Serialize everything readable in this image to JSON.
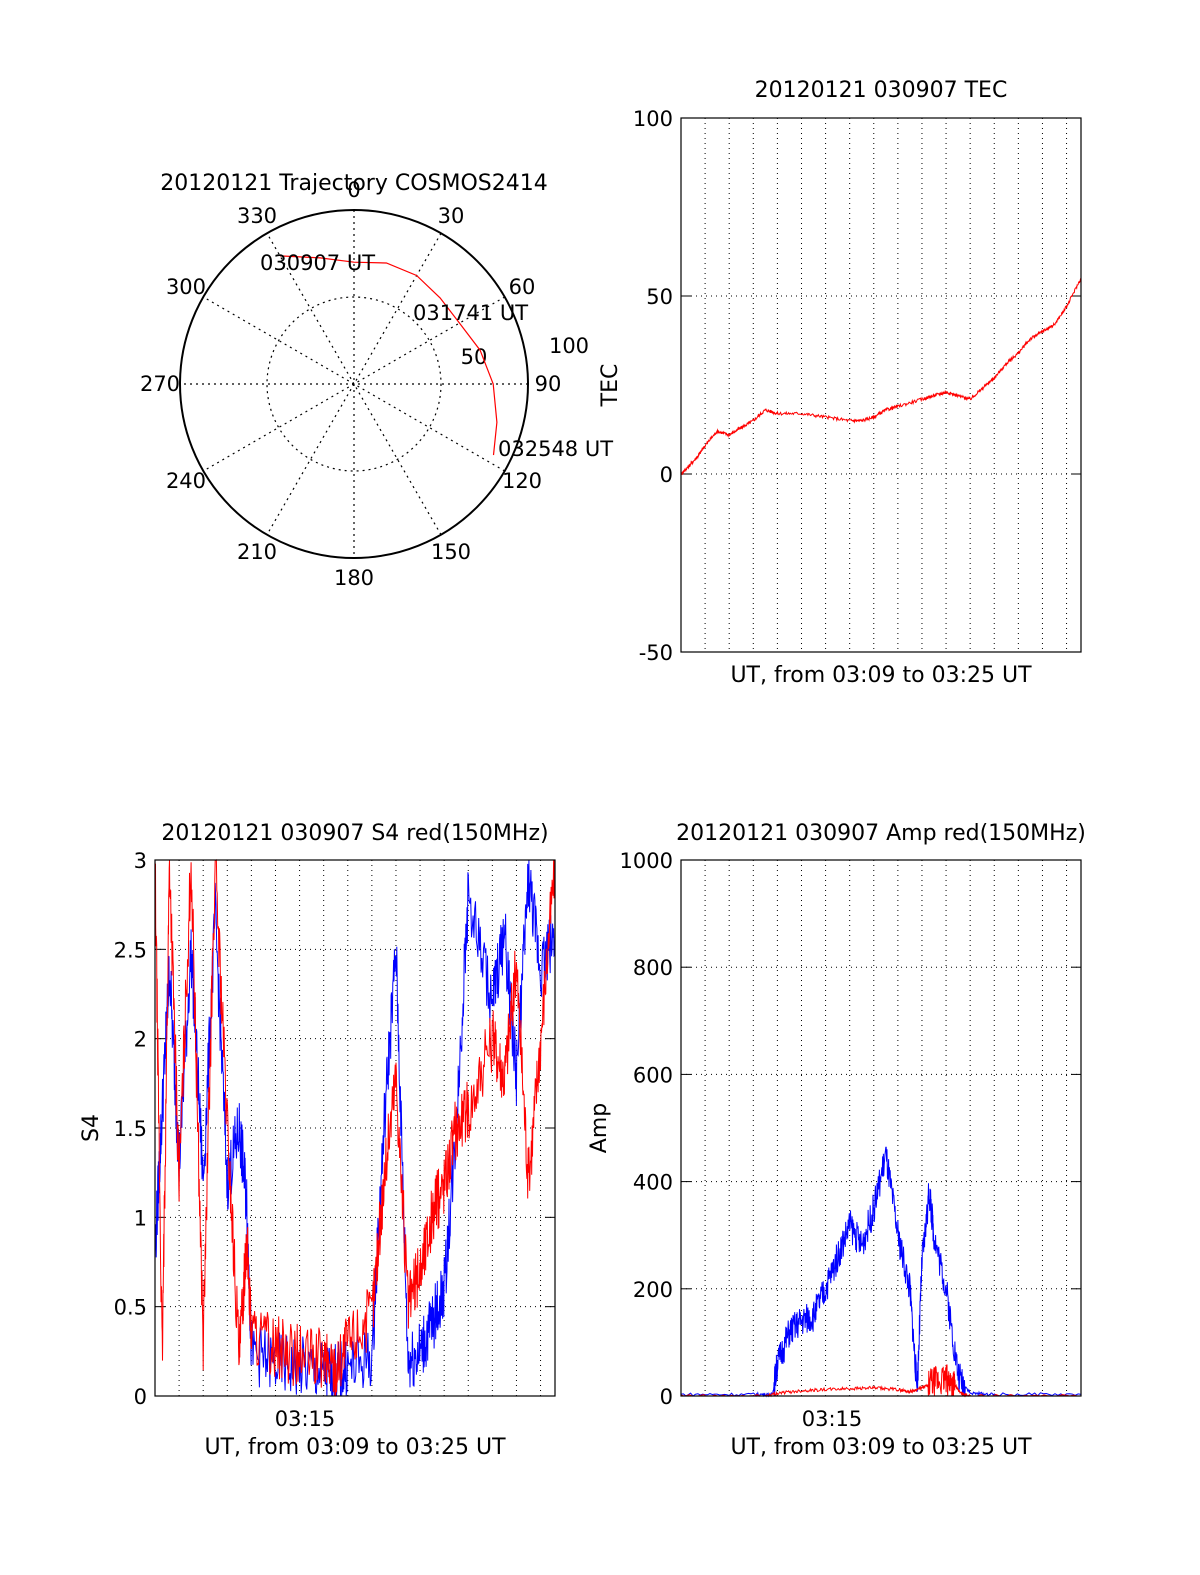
{
  "chart_data": [
    {
      "type": "polar",
      "title": "20120121 Trajectory COSMOS2414",
      "angle_ticks": [
        "0",
        "30",
        "60",
        "90",
        "120",
        "150",
        "180",
        "210",
        "240",
        "270",
        "300",
        "330"
      ],
      "radial_ticks": [
        "50",
        "100"
      ],
      "trajectory": [
        {
          "az": 330,
          "r": 85
        },
        {
          "az": 345,
          "r": 75
        },
        {
          "az": 0,
          "r": 70
        },
        {
          "az": 15,
          "r": 72
        },
        {
          "az": 30,
          "r": 72
        },
        {
          "az": 45,
          "r": 70
        },
        {
          "az": 60,
          "r": 70
        },
        {
          "az": 75,
          "r": 75
        },
        {
          "az": 90,
          "r": 80
        },
        {
          "az": 105,
          "r": 85
        },
        {
          "az": 117,
          "r": 90
        }
      ],
      "annotations": [
        "030907 UT",
        "031741 UT",
        "032548 UT"
      ],
      "colors": {
        "trajectory": "#ff0000"
      }
    },
    {
      "type": "line",
      "title": "20120121 030907 TEC",
      "xlabel": "UT, from 03:09 to 03:25 UT",
      "ylabel": "TEC",
      "ylim": [
        -50,
        100
      ],
      "yticks": [
        "-50",
        "0",
        "50",
        "100"
      ],
      "xlim_minutes_after_0309": [
        0,
        16.6
      ],
      "grid": true,
      "series": [
        {
          "color": "#ff0000",
          "x": [
            0,
            0.3,
            0.7,
            1.0,
            1.5,
            2.0,
            2.5,
            3.0,
            3.5,
            4.0,
            5.0,
            6.0,
            7.0,
            7.5,
            8.0,
            8.5,
            9.0,
            10.0,
            10.5,
            11.0,
            11.5,
            12.0,
            12.5,
            13.0,
            13.5,
            14.0,
            14.5,
            15.0,
            15.5,
            16.0,
            16.6
          ],
          "y": [
            0,
            2,
            5,
            8,
            12,
            11,
            13,
            15,
            18,
            17,
            17,
            16,
            15,
            15,
            16,
            18,
            19,
            21,
            22,
            23,
            22,
            21,
            24,
            27,
            31,
            34,
            38,
            40,
            42,
            47,
            55
          ]
        }
      ]
    },
    {
      "type": "line",
      "title": "20120121 030907 S4 red(150MHz)",
      "xlabel": "UT, from 03:09 to 03:25 UT",
      "ylabel": "S4",
      "ylim": [
        0,
        3
      ],
      "yticks": [
        "0",
        "0.5",
        "1",
        "1.5",
        "2",
        "2.5",
        "3"
      ],
      "xticks": [
        "03:15"
      ],
      "xlim_minutes_after_0309": [
        0,
        16.6
      ],
      "grid": true,
      "series": [
        {
          "color": "#0000ff",
          "x": [
            0,
            0.3,
            0.6,
            1.0,
            1.5,
            2.0,
            2.5,
            3.0,
            3.5,
            3.8,
            4.0,
            5.0,
            6.0,
            7.0,
            7.5,
            8.0,
            9.0,
            9.5,
            10.0,
            10.5,
            11.0,
            11.5,
            12.0,
            12.5,
            13.0,
            14.0,
            14.5,
            15.0,
            15.5,
            16.0,
            16.6
          ],
          "y": [
            0.8,
            1.6,
            2.4,
            1.3,
            2.5,
            1.2,
            2.7,
            1.2,
            1.5,
            1.1,
            0.25,
            0.18,
            0.16,
            0.13,
            0.12,
            0.15,
            0.22,
            1.5,
            2.5,
            0.2,
            0.25,
            0.4,
            0.6,
            1.5,
            2.8,
            2.2,
            2.6,
            1.8,
            2.9,
            2.4,
            2.6
          ]
        },
        {
          "color": "#ff0000",
          "x": [
            0,
            0.3,
            0.6,
            1.0,
            1.5,
            2.0,
            2.5,
            3.0,
            3.5,
            3.8,
            4.0,
            5.0,
            6.0,
            7.0,
            7.5,
            8.0,
            9.0,
            9.5,
            10.0,
            10.5,
            11.0,
            11.5,
            12.0,
            12.5,
            13.0,
            14.0,
            14.5,
            15.0,
            15.5,
            16.0,
            16.6
          ],
          "y": [
            3,
            0.2,
            3,
            1.2,
            3,
            0.3,
            3,
            1.5,
            0.2,
            0.9,
            0.35,
            0.28,
            0.22,
            0.2,
            0.15,
            0.3,
            0.45,
            1.2,
            1.8,
            0.5,
            0.7,
            1.0,
            1.2,
            1.5,
            1.6,
            2.0,
            1.8,
            2.4,
            1.2,
            2.0,
            3
          ]
        }
      ]
    },
    {
      "type": "line",
      "title": "20120121 030907 Amp red(150MHz)",
      "xlabel": "UT, from 03:09 to 03:25 UT",
      "ylabel": "Amp",
      "ylim": [
        0,
        1000
      ],
      "yticks": [
        "0",
        "200",
        "400",
        "600",
        "800",
        "1000"
      ],
      "xticks": [
        "03:15"
      ],
      "xlim_minutes_after_0309": [
        0,
        16.6
      ],
      "grid": true,
      "series": [
        {
          "color": "#0000ff",
          "x": [
            0,
            3.0,
            3.8,
            4.0,
            4.5,
            5.0,
            5.5,
            6.0,
            6.5,
            7.0,
            7.5,
            8.0,
            8.5,
            9.0,
            9.5,
            9.8,
            10.0,
            10.3,
            10.5,
            11.0,
            11.5,
            12.0,
            13.0,
            16.6
          ],
          "y": [
            3,
            3,
            3,
            60,
            120,
            140,
            150,
            200,
            260,
            320,
            280,
            350,
            450,
            300,
            200,
            10,
            250,
            380,
            300,
            200,
            40,
            5,
            3,
            3
          ]
        },
        {
          "color": "#ff0000",
          "x": [
            0,
            3.5,
            4.0,
            5.0,
            6.0,
            7.0,
            8.0,
            9.0,
            9.5,
            10.0,
            10.5,
            11.0,
            11.3,
            11.6,
            12.0,
            16.6
          ],
          "y": [
            0,
            0,
            5,
            10,
            12,
            14,
            15,
            12,
            8,
            15,
            25,
            30,
            25,
            5,
            0,
            0
          ]
        }
      ]
    }
  ]
}
